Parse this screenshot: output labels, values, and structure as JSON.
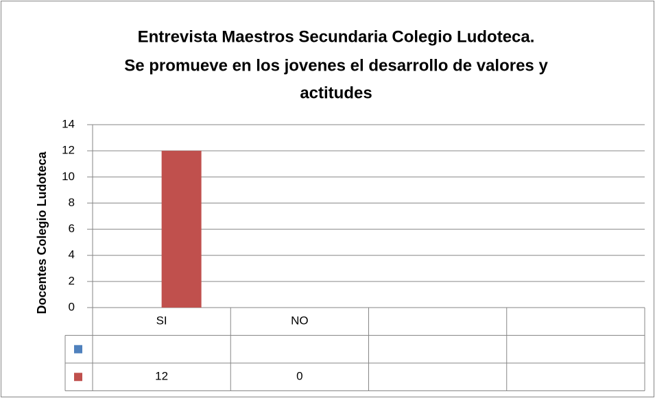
{
  "chart_data": {
    "type": "bar",
    "title": [
      "Entrevista Maestros Secundaria Colegio Ludoteca.",
      "Se promueve en los jovenes el desarrollo de valores y",
      "actitudes"
    ],
    "y_label": "Docentes Colegio Ludoteca",
    "categories": [
      "SI",
      "NO",
      null,
      null
    ],
    "series": [
      {
        "color": "#4f81bd",
        "values": [
          null,
          null,
          null,
          null
        ]
      },
      {
        "color": "#c0504d",
        "values": [
          12,
          0,
          null,
          null
        ]
      }
    ],
    "ylim": [
      0,
      14
    ],
    "yticks": [
      0,
      2,
      4,
      6,
      8,
      10,
      12,
      14
    ],
    "grid": true,
    "data_table": true
  }
}
